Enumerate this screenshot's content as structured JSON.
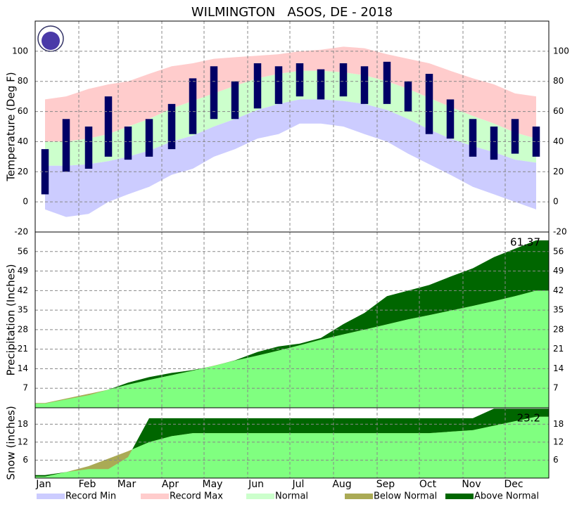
{
  "title": "WILMINGTON   ASOS, DE - 2018",
  "legend": [
    {
      "name": "Record Min",
      "color": "#ccccff"
    },
    {
      "name": "Record Max",
      "color": "#ffcccc"
    },
    {
      "name": "Normal",
      "color": "#ccffcc"
    },
    {
      "name": "Below Normal",
      "color": "#aaaa55"
    },
    {
      "name": "Above Normal",
      "color": "#006600"
    }
  ],
  "chart_data": [
    {
      "type": "temperature",
      "ylabel": "Temperature (Deg F)",
      "x": [
        8,
        23,
        39,
        53,
        67,
        82,
        98,
        113,
        128,
        143,
        159,
        174,
        189,
        204,
        220,
        235,
        251,
        266,
        281,
        296,
        312,
        327,
        342,
        357
      ],
      "xlim": [
        1,
        366
      ],
      "xticks": [
        {
          "value": 1,
          "label": "Jan"
        },
        {
          "value": 32,
          "label": "Feb"
        },
        {
          "value": 60,
          "label": "Mar"
        },
        {
          "value": 91,
          "label": "Apr"
        },
        {
          "value": 121,
          "label": "May"
        },
        {
          "value": 152,
          "label": "Jun"
        },
        {
          "value": 182,
          "label": "Jul"
        },
        {
          "value": 213,
          "label": "Aug"
        },
        {
          "value": 244,
          "label": "Sep"
        },
        {
          "value": 274,
          "label": "Oct"
        },
        {
          "value": 305,
          "label": "Nov"
        },
        {
          "value": 335,
          "label": "Dec"
        }
      ],
      "ylim": [
        -20,
        120
      ],
      "yticks": [
        -20,
        0,
        20,
        40,
        60,
        80,
        100
      ],
      "grid": true,
      "record_max": [
        68,
        70,
        75,
        78,
        80,
        85,
        90,
        92,
        95,
        96,
        97,
        98,
        100,
        101,
        103,
        102,
        98,
        95,
        92,
        87,
        82,
        78,
        72,
        70
      ],
      "normal_high": [
        40,
        40,
        42,
        45,
        50,
        55,
        62,
        67,
        72,
        77,
        82,
        85,
        87,
        87,
        86,
        84,
        80,
        75,
        69,
        63,
        57,
        52,
        46,
        42
      ],
      "normal_low": [
        24,
        24,
        25,
        27,
        30,
        34,
        40,
        44,
        50,
        55,
        61,
        65,
        68,
        68,
        67,
        65,
        61,
        55,
        48,
        42,
        37,
        33,
        28,
        26
      ],
      "record_min": [
        -5,
        -10,
        -8,
        0,
        5,
        10,
        18,
        22,
        30,
        35,
        42,
        45,
        52,
        52,
        50,
        45,
        40,
        32,
        25,
        18,
        10,
        5,
        0,
        -5
      ],
      "observed_high": [
        35,
        55,
        50,
        70,
        50,
        55,
        65,
        82,
        90,
        80,
        92,
        90,
        92,
        88,
        92,
        90,
        93,
        80,
        85,
        68,
        55,
        50,
        55,
        50
      ],
      "observed_low": [
        5,
        20,
        22,
        30,
        28,
        30,
        35,
        45,
        55,
        55,
        62,
        65,
        70,
        68,
        70,
        65,
        65,
        60,
        45,
        42,
        30,
        28,
        32,
        30
      ],
      "observed_color": "#000066"
    },
    {
      "type": "cumulative",
      "ylabel": "Precipitation (Inches)",
      "x": [
        8,
        23,
        39,
        53,
        67,
        82,
        98,
        113,
        128,
        143,
        159,
        174,
        189,
        204,
        220,
        235,
        251,
        266,
        281,
        296,
        312,
        327,
        342,
        357
      ],
      "xlim": [
        1,
        366
      ],
      "ylim": [
        0,
        63
      ],
      "yticks": [
        7,
        14,
        21,
        28,
        35,
        42,
        49,
        56
      ],
      "grid": true,
      "observed": [
        1.5,
        3,
        4.5,
        6.5,
        9,
        11,
        12.5,
        13.5,
        15,
        17,
        20,
        22,
        23,
        25,
        30,
        34,
        40,
        42,
        44,
        47,
        50,
        54,
        57,
        60
      ],
      "normal": [
        1.7,
        3.3,
        5,
        6.5,
        8.3,
        10,
        11.7,
        13.3,
        15.1,
        16.9,
        18.7,
        20.5,
        22.4,
        24.4,
        26.3,
        28,
        29.9,
        31.7,
        33.2,
        34.8,
        36.5,
        38.2,
        40,
        42
      ],
      "normal_color": "#80ff80",
      "annotation": "61.37"
    },
    {
      "type": "cumulative",
      "ylabel": "Snow (inches)",
      "x": [
        8,
        23,
        39,
        53,
        67,
        82,
        98,
        113,
        128,
        143,
        159,
        174,
        189,
        204,
        220,
        235,
        251,
        266,
        281,
        296,
        312,
        327,
        342,
        357
      ],
      "xlim": [
        1,
        366
      ],
      "ylim": [
        0,
        23.5
      ],
      "yticks": [
        6,
        12,
        18
      ],
      "grid": true,
      "observed": [
        1,
        2,
        3,
        3,
        7,
        20,
        20,
        20,
        20,
        20,
        20,
        20,
        20,
        20,
        20,
        20,
        20,
        20,
        20,
        20,
        20,
        23.2,
        23.2,
        23.2
      ],
      "normal": [
        0.5,
        2,
        4,
        6.5,
        9,
        12,
        14,
        15,
        15,
        15,
        15,
        15,
        15,
        15,
        15,
        15,
        15,
        15,
        15,
        15.5,
        16,
        17.5,
        19,
        20.5
      ],
      "normal_color": "#80ff80",
      "annotation": "23.2"
    }
  ]
}
